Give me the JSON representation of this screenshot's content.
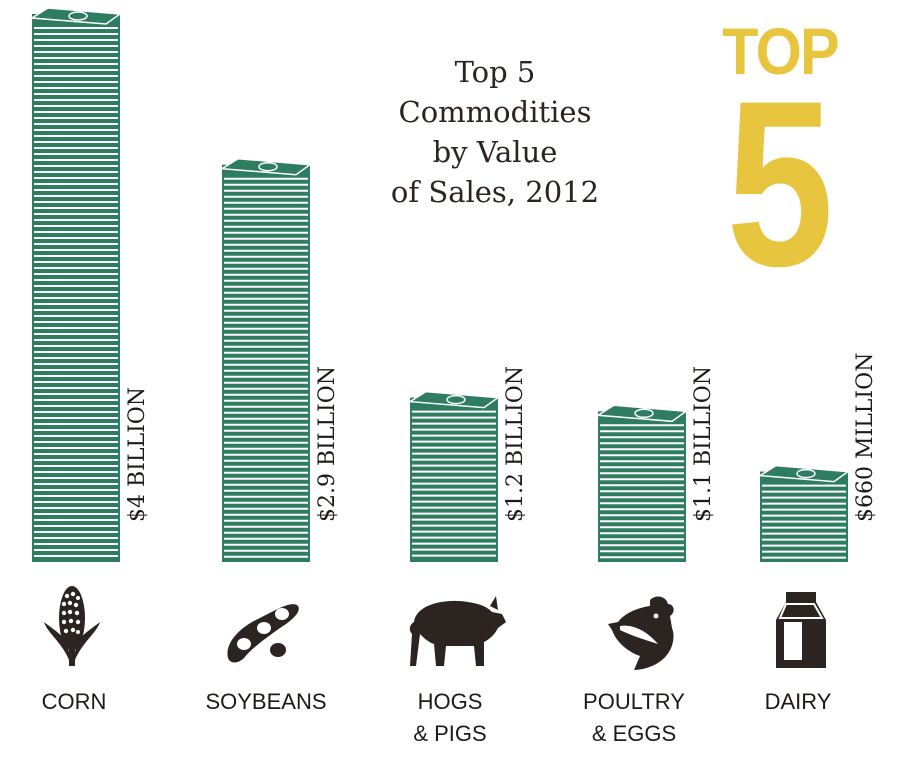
{
  "title_lines": [
    "Top 5",
    "Commodities",
    "by Value",
    "of Sales, 2012"
  ],
  "badge": {
    "word": "TOP",
    "number": "5"
  },
  "colors": {
    "stack": "#2e7d60",
    "stack_line": "#ffffff",
    "accent": "#e8c53e",
    "ink": "#2b2420"
  },
  "chart_data": {
    "type": "bar",
    "title": "Top 5 Commodities by Value of Sales, 2012",
    "categories": [
      "CORN",
      "SOYBEANS",
      "HOGS & PIGS",
      "POULTRY & EGGS",
      "DAIRY"
    ],
    "values": [
      4.0,
      2.9,
      1.2,
      1.1,
      0.66
    ],
    "value_labels": [
      "$4 BILLION",
      "$2.9 BILLION",
      "$1.2 BILLION",
      "$1.1 BILLION",
      "$660 MILLION"
    ],
    "category_lines": [
      [
        "CORN"
      ],
      [
        "SOYBEANS"
      ],
      [
        "HOGS",
        "& PIGS"
      ],
      [
        "POULTRY",
        "& EGGS"
      ],
      [
        "DAIRY"
      ]
    ],
    "icons": [
      "corn-icon",
      "soybean-icon",
      "pig-icon",
      "chicken-icon",
      "milk-carton-icon"
    ],
    "grid": false,
    "legend": "none"
  }
}
